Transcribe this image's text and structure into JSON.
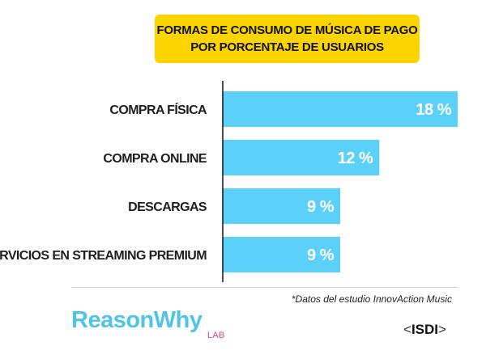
{
  "chart_data": {
    "type": "bar",
    "orientation": "horizontal",
    "title": [
      "Formas de consumo de música de pago",
      "por porcentaje de usuarios"
    ],
    "categories": [
      "COMPRA FÍSICA",
      "COMPRA ONLINE",
      "DESCARGAS",
      "SERVICIOS EN STREAMING PREMIUM"
    ],
    "values": [
      18,
      12,
      9,
      9
    ],
    "value_labels": [
      "18 %",
      "12 %",
      "9 %",
      "9 %"
    ],
    "unit": "%",
    "xlim": [
      0,
      18
    ],
    "grid": false,
    "legend": "none",
    "colors": {
      "bar": "#5bd0f9",
      "title_background": "#fcd400",
      "value_text": "#ffffff"
    }
  },
  "footer": {
    "source_note": "*Datos del estudio InnovAction Music",
    "logo_left": {
      "main": "ReasonWhy",
      "sub": "LAB",
      "color_main": "#4ec5e8",
      "color_sub": "#e0438c"
    },
    "logo_right": {
      "open": "<",
      "name": "ISDI",
      "close": ">"
    }
  }
}
